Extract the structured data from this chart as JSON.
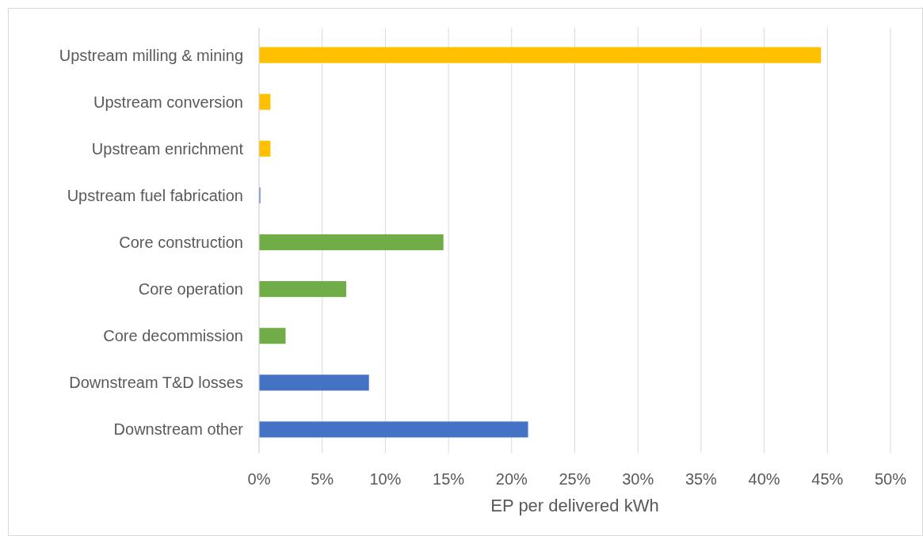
{
  "chart_data": {
    "type": "bar",
    "orientation": "horizontal",
    "xlabel": "EP per delivered kWh",
    "categories": [
      "Upstream milling & mining",
      "Upstream conversion",
      "Upstream enrichment",
      "Upstream fuel fabrication",
      "Core construction",
      "Core operation",
      "Core decommission",
      "Downstream T&D losses",
      "Downstream other"
    ],
    "values": [
      44.5,
      0.9,
      0.9,
      0.1,
      14.6,
      6.9,
      2.1,
      8.7,
      21.3
    ],
    "colors": [
      "#ffc000",
      "#ffc000",
      "#ffc000",
      "#4472c4",
      "#70ad47",
      "#70ad47",
      "#70ad47",
      "#4472c4",
      "#4472c4"
    ],
    "xlim": [
      0,
      50
    ],
    "xticks": [
      {
        "value": 0,
        "label": "0%"
      },
      {
        "value": 5,
        "label": "5%"
      },
      {
        "value": 10,
        "label": "10%"
      },
      {
        "value": 15,
        "label": "15%"
      },
      {
        "value": 20,
        "label": "20%"
      },
      {
        "value": 25,
        "label": "25%"
      },
      {
        "value": 30,
        "label": "30%"
      },
      {
        "value": 35,
        "label": "35%"
      },
      {
        "value": 40,
        "label": "40%"
      },
      {
        "value": 45,
        "label": "45%"
      },
      {
        "value": 50,
        "label": "50%"
      }
    ],
    "grid": "x"
  }
}
